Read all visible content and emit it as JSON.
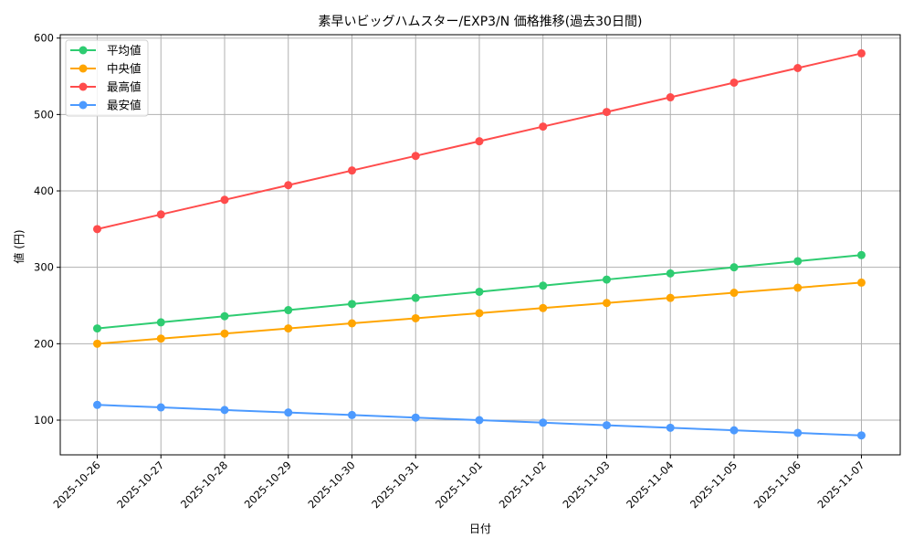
{
  "chart_data": {
    "type": "line",
    "title": "素早いビッグハムスター/EXP3/N 価格推移(過去30日間)",
    "xlabel": "日付",
    "ylabel": "値 (円)",
    "categories": [
      "2025-10-26",
      "2025-10-27",
      "2025-10-28",
      "2025-10-29",
      "2025-10-30",
      "2025-10-31",
      "2025-11-01",
      "2025-11-02",
      "2025-11-03",
      "2025-11-04",
      "2025-11-05",
      "2025-11-06",
      "2025-11-07"
    ],
    "yticks": [
      100,
      200,
      300,
      400,
      500,
      600
    ],
    "ylim": [
      55,
      605
    ],
    "grid": true,
    "legend_position": "upper left",
    "series": [
      {
        "name": "平均値",
        "color": "#2ecc71",
        "values": [
          220,
          228,
          236,
          244,
          252,
          260,
          268,
          276,
          284,
          292,
          300,
          308,
          316
        ]
      },
      {
        "name": "中央値",
        "color": "#ffa500",
        "values": [
          200,
          206.7,
          213.3,
          220,
          226.7,
          233.3,
          240,
          246.7,
          253.3,
          260,
          266.7,
          273.3,
          280
        ]
      },
      {
        "name": "最高値",
        "color": "#ff4c4c",
        "values": [
          350,
          369.2,
          388.3,
          407.5,
          426.7,
          445.8,
          465,
          484.2,
          503.3,
          522.5,
          541.7,
          560.8,
          580
        ]
      },
      {
        "name": "最安値",
        "color": "#4c9aff",
        "values": [
          120,
          116.7,
          113.3,
          110,
          106.7,
          103.3,
          100,
          96.7,
          93.3,
          90,
          86.7,
          83.3,
          80
        ]
      }
    ]
  }
}
